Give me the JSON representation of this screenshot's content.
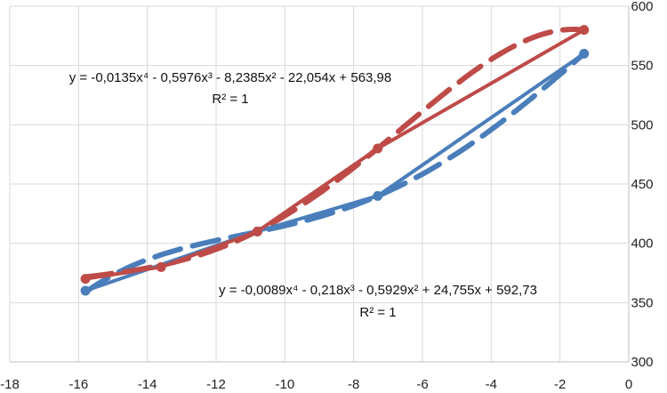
{
  "chart_data": {
    "type": "scatter",
    "xlim": [
      -18,
      0
    ],
    "ylim": [
      300,
      600
    ],
    "x_ticks": [
      "-18",
      "-16",
      "-14",
      "-12",
      "-10",
      "-8",
      "-6",
      "-4",
      "-2",
      "0"
    ],
    "y_ticks": [
      "300",
      "350",
      "400",
      "450",
      "500",
      "550",
      "600"
    ],
    "y_axis_side": "right",
    "grid": true,
    "legend": "none",
    "series": [
      {
        "color": "#4A7EBB",
        "points": [
          {
            "x": -15.8,
            "y": 360
          },
          {
            "x": -10.8,
            "y": 410
          },
          {
            "x": -7.3,
            "y": 440
          },
          {
            "x": -1.3,
            "y": 560
          }
        ],
        "trendline": {
          "type": "polynomial",
          "order": 4,
          "coefficients": [
            -0.0089,
            -0.218,
            -0.5929,
            24.755,
            592.73
          ],
          "equation": "y = -0,0089x⁴ - 0,218x³ - 0,5929x² + 24,755x + 592,73",
          "r2": "R² = 1"
        }
      },
      {
        "color": "#BE4B48",
        "points": [
          {
            "x": -15.8,
            "y": 370
          },
          {
            "x": -13.6,
            "y": 380
          },
          {
            "x": -10.8,
            "y": 410
          },
          {
            "x": -7.3,
            "y": 480
          },
          {
            "x": -1.3,
            "y": 580
          }
        ],
        "trendline": {
          "type": "polynomial",
          "order": 4,
          "coefficients": [
            -0.0135,
            -0.5976,
            -8.2385,
            -22.054,
            563.98
          ],
          "equation": "y = -0,0135x⁴ - 0,5976x³ - 8,2385x² - 22,054x + 563,98",
          "r2": "R² = 1"
        }
      }
    ]
  }
}
